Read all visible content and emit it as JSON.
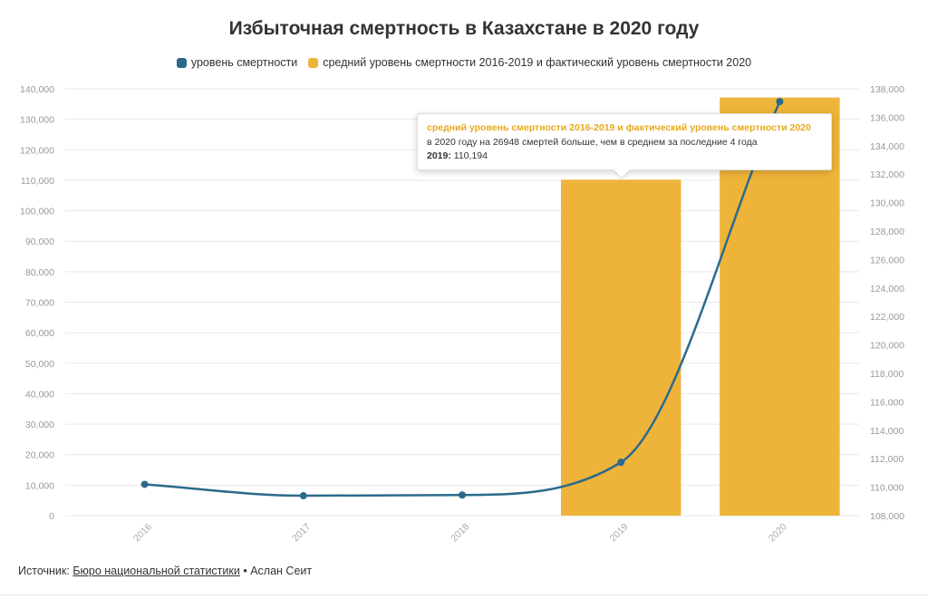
{
  "title": "Избыточная смертность в Казахстане в 2020 году",
  "legend": {
    "line_label": "уровень смертности",
    "bar_label": "средний уровень смертности 2016-2019 и фактический уровень смертности 2020"
  },
  "colors": {
    "line": "#2b6a8c",
    "bar": "#eeb43a",
    "tooltip_title": "#e8a81c",
    "grid": "#e8e8e8",
    "axis_text": "#999999"
  },
  "chart_data": {
    "type": "bar+line",
    "title": "Избыточная смертность в Казахстане в 2020 году",
    "categories": [
      "2016",
      "2017",
      "2018",
      "2019",
      "2020"
    ],
    "series": [
      {
        "name": "средний уровень смертности 2016-2019 и фактический уровень смертности 2020",
        "type": "bar",
        "axis": "left",
        "values": [
          null,
          null,
          null,
          110194,
          137142
        ]
      },
      {
        "name": "уровень смертности",
        "type": "line",
        "axis": "right",
        "values": [
          110200,
          109400,
          109450,
          111750,
          137100
        ]
      }
    ],
    "left_axis": {
      "ylim": [
        0,
        140000
      ],
      "ticks": [
        "0",
        "10,000",
        "20,000",
        "30,000",
        "40,000",
        "50,000",
        "60,000",
        "70,000",
        "80,000",
        "90,000",
        "100,000",
        "110,000",
        "120,000",
        "130,000",
        "140,000"
      ]
    },
    "right_axis": {
      "ylim": [
        108000,
        138000
      ],
      "ticks": [
        "108,000",
        "110,000",
        "112,000",
        "114,000",
        "116,000",
        "118,000",
        "120,000",
        "122,000",
        "124,000",
        "126,000",
        "128,000",
        "130,000",
        "132,000",
        "134,000",
        "136,000",
        "138,000"
      ]
    },
    "grid": true,
    "legend_position": "top-center"
  },
  "tooltip": {
    "title": "средний уровень смертности 2016-2019 и фактический уровень смертности 2020",
    "text": "в 2020 году на 26948 смертей больше, чем в среднем за последние 4 года",
    "year_label": "2019:",
    "year_value": "110,194"
  },
  "footer": {
    "source_label": "Источник:",
    "source_link": "Бюро национальной статистики",
    "separator": "•",
    "author": "Аслан Сеит"
  }
}
